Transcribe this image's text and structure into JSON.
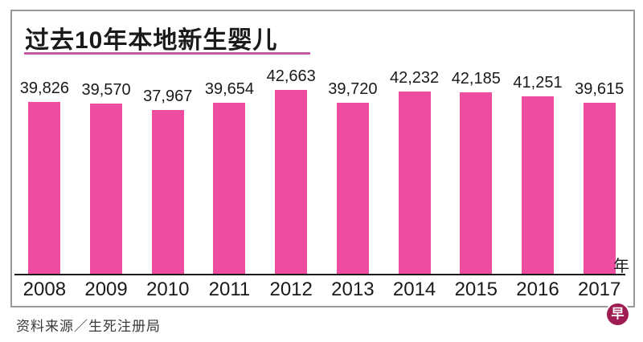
{
  "header": {
    "title": "过去10年本地新生婴儿"
  },
  "chart_data": {
    "type": "bar",
    "title": "过去10年本地新生婴儿",
    "categories": [
      "2008",
      "2009",
      "2010",
      "2011",
      "2012",
      "2013",
      "2014",
      "2015",
      "2016",
      "2017"
    ],
    "values": [
      39826,
      39570,
      37967,
      39654,
      42663,
      39720,
      42232,
      42185,
      41251,
      39615
    ],
    "value_labels": [
      "39,826",
      "39,570",
      "37,967",
      "39,654",
      "42,663",
      "39,720",
      "42,232",
      "42,185",
      "41,251",
      "39,615"
    ],
    "xlabel": "年",
    "ylabel": "",
    "ylim": [
      0,
      45000
    ],
    "grid": false,
    "legend": "none"
  },
  "axis": {
    "unit_label": "年"
  },
  "footer": {
    "source": "资料来源／生死注册局"
  },
  "branding": {
    "logo_glyph": "早"
  },
  "colors": {
    "bar": "#ee4d9f",
    "title_underline": "#c35aa3",
    "box_border": "#98989c",
    "axis": "#1a1a1a",
    "logo": "#a01d53"
  }
}
